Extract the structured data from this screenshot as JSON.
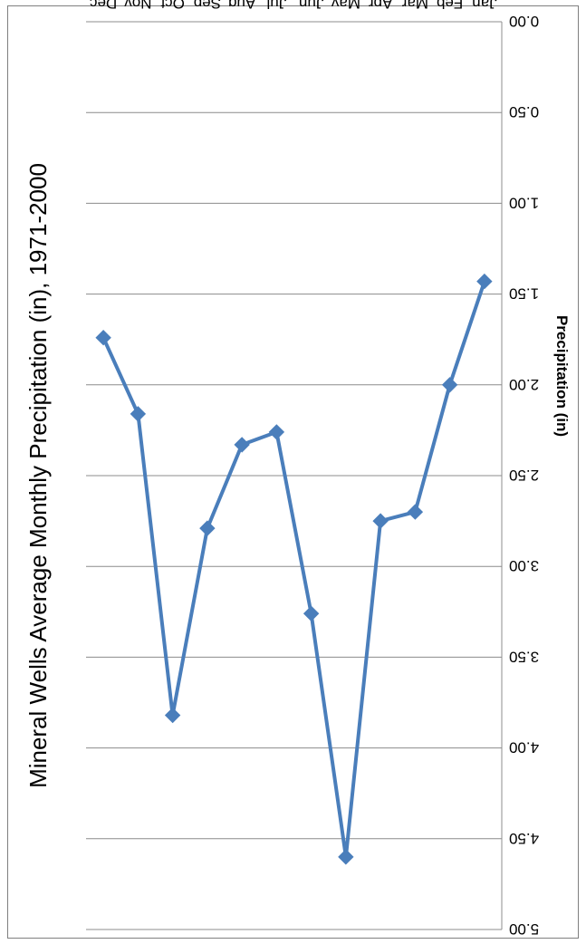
{
  "chart_data": {
    "type": "line",
    "title": "Mineral Wells Average Monthly Precipitation (in), 1971-2000",
    "xlabel": "",
    "ylabel": "Precipitation (in)",
    "categories": [
      "Jan",
      "Feb",
      "Mar",
      "Apr",
      "May",
      "Jun",
      "Jul",
      "Aug",
      "Sep",
      "Oct",
      "Nov",
      "Dec"
    ],
    "series": [
      {
        "values": [
          1.43,
          2.0,
          2.7,
          2.75,
          4.6,
          3.26,
          2.26,
          2.33,
          2.79,
          3.82,
          2.16,
          1.74
        ]
      }
    ],
    "ylim": [
      0,
      5
    ],
    "yticks": [
      "5.00",
      "4.50",
      "4.00",
      "3.50",
      "3.00",
      "2.50",
      "2.00",
      "1.50",
      "1.00",
      "0.50",
      "0.00"
    ],
    "grid": true,
    "legend": "none",
    "orientation": "rotated 180 degrees (upside down)",
    "colors": {
      "series": "#4a7ebb",
      "grid": "#8c8c8c",
      "frame": "#7f7f7f"
    }
  }
}
